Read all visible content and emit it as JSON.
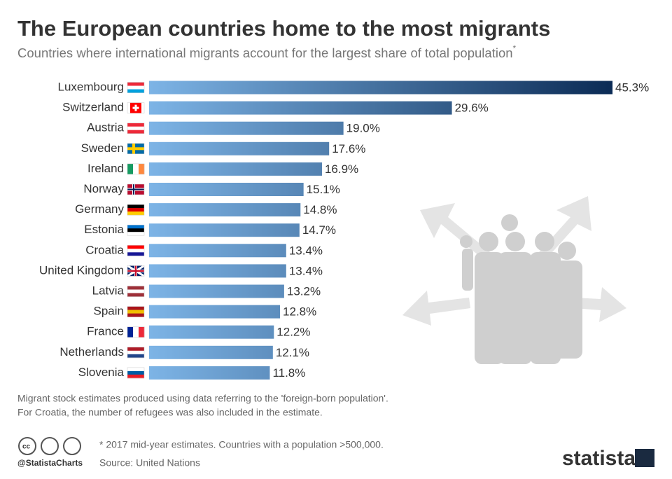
{
  "chart_data": {
    "type": "bar",
    "orientation": "horizontal",
    "title": "The European countries home to the most migrants",
    "subtitle": "Countries where international migrants account for the largest share of total population",
    "subtitle_note": "*",
    "categories": [
      "Luxembourg",
      "Switzerland",
      "Austria",
      "Sweden",
      "Ireland",
      "Norway",
      "Germany",
      "Estonia",
      "Croatia",
      "United Kingdom",
      "Latvia",
      "Spain",
      "France",
      "Netherlands",
      "Slovenia"
    ],
    "values": [
      45.3,
      29.6,
      19.0,
      17.6,
      16.9,
      15.1,
      14.8,
      14.7,
      13.4,
      13.4,
      13.2,
      12.8,
      12.2,
      12.1,
      11.8
    ],
    "value_labels": [
      "45.3%",
      "29.6%",
      "19.0%",
      "17.6%",
      "16.9%",
      "15.1%",
      "14.8%",
      "14.7%",
      "13.4%",
      "13.4%",
      "13.2%",
      "12.8%",
      "12.2%",
      "12.1%",
      "11.8%"
    ],
    "colors": [
      "#7db4e6",
      "#0b2b55"
    ]
  },
  "notes": [
    "Migrant stock estimates produced using data referring to the 'foreign-born population'.",
    "For Croatia, the number of refugees was also included in the estimate."
  ],
  "footnote": "* 2017 mid-year estimates. Countries with a population >500,000.",
  "source": "Source: United Nations",
  "handle": "@StatistaCharts",
  "brand": "statista"
}
